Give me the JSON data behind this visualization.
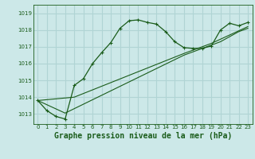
{
  "title": "Graphe pression niveau de la mer (hPa)",
  "bg_color": "#cce8e8",
  "grid_color": "#b0d4d4",
  "line_color": "#1a5c1a",
  "xlim": [
    -0.5,
    23.5
  ],
  "ylim": [
    1012.4,
    1019.5
  ],
  "xticks": [
    0,
    1,
    2,
    3,
    4,
    5,
    6,
    7,
    8,
    9,
    10,
    11,
    12,
    13,
    14,
    15,
    16,
    17,
    18,
    19,
    20,
    21,
    22,
    23
  ],
  "yticks": [
    1013,
    1014,
    1015,
    1016,
    1017,
    1018,
    1019
  ],
  "series1_x": [
    0,
    1,
    2,
    3,
    4,
    5,
    6,
    7,
    8,
    9,
    10,
    11,
    12,
    13,
    14,
    15,
    16,
    17,
    18,
    19,
    20,
    21,
    22,
    23
  ],
  "series1_y": [
    1013.8,
    1013.2,
    1012.85,
    1012.7,
    1014.7,
    1015.1,
    1016.0,
    1016.65,
    1017.25,
    1018.1,
    1018.55,
    1018.6,
    1018.45,
    1018.35,
    1017.9,
    1017.3,
    1016.95,
    1016.9,
    1016.9,
    1017.05,
    1018.0,
    1018.4,
    1018.25,
    1018.45
  ],
  "series2_x": [
    0,
    1,
    2,
    3,
    16,
    17,
    18,
    19,
    20,
    21,
    22,
    23
  ],
  "series2_y": [
    1013.8,
    1013.55,
    1013.3,
    1013.05,
    1016.5,
    1016.7,
    1016.9,
    1017.1,
    1017.3,
    1017.6,
    1017.9,
    1018.1
  ],
  "series3_x": [
    0,
    1,
    2,
    3,
    4,
    16,
    17,
    18,
    19,
    20,
    21,
    22,
    23
  ],
  "series3_y": [
    1013.8,
    1013.85,
    1013.9,
    1013.95,
    1014.0,
    1016.6,
    1016.8,
    1017.0,
    1017.2,
    1017.45,
    1017.7,
    1017.95,
    1018.2
  ],
  "title_fontsize": 7,
  "tick_fontsize": 5,
  "label_color": "#1a5c1a"
}
